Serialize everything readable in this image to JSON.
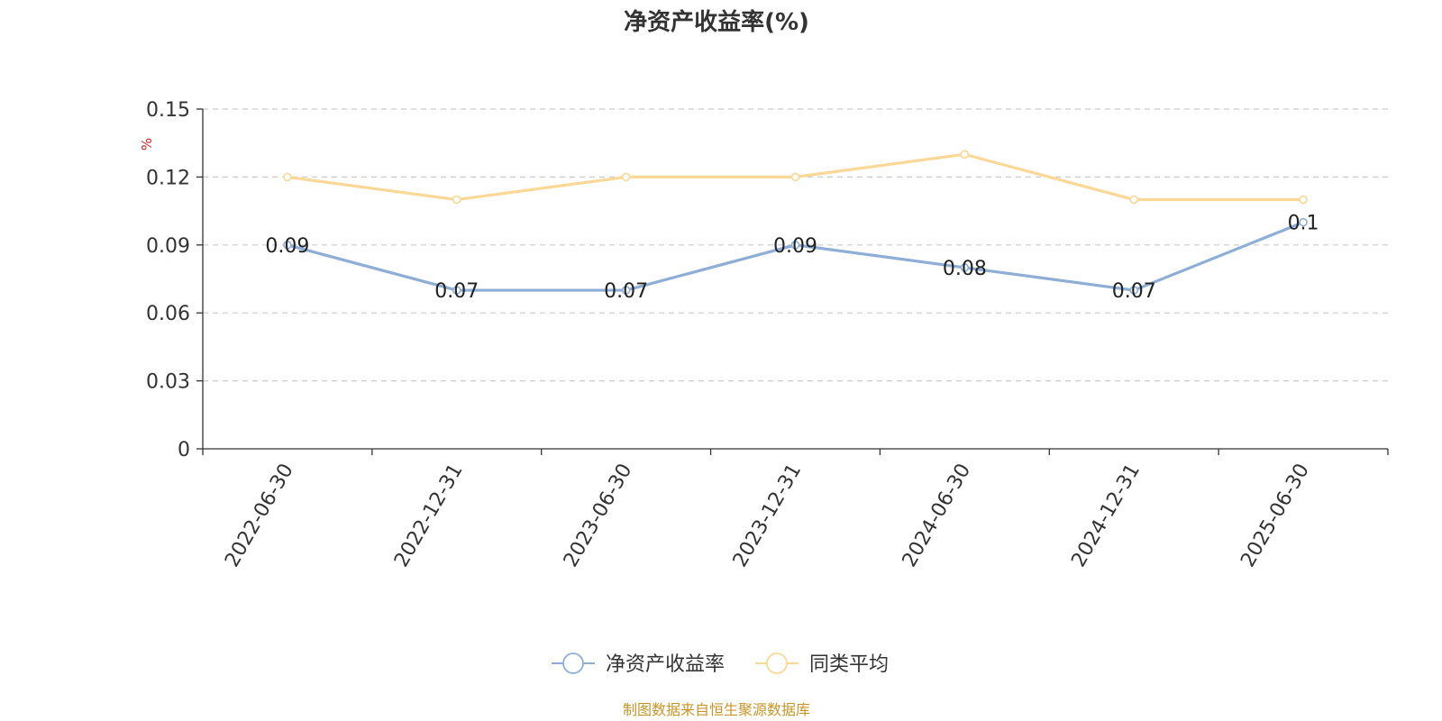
{
  "chart_data": {
    "type": "line",
    "title": "净资产收益率(%)",
    "ylabel": "%",
    "xlabel": "",
    "categories": [
      "2022-06-30",
      "2022-12-31",
      "2023-06-30",
      "2023-12-31",
      "2024-06-30",
      "2024-12-31",
      "2025-06-30"
    ],
    "ylim": [
      0,
      0.15
    ],
    "yticks": [
      "0",
      "0.03",
      "0.06",
      "0.09",
      "0.12",
      "0.15"
    ],
    "grid": true,
    "legend_position": "bottom",
    "series": [
      {
        "name": "净资产收益率",
        "values": [
          0.09,
          0.07,
          0.07,
          0.09,
          0.08,
          0.07,
          0.1
        ],
        "labels": [
          "0.09",
          "0.07",
          "0.07",
          "0.09",
          "0.08",
          "0.07",
          "0.1"
        ],
        "color": "#8eaed8"
      },
      {
        "name": "同类平均",
        "values": [
          0.12,
          0.11,
          0.12,
          0.12,
          0.13,
          0.11,
          0.11
        ],
        "color": "#fbd897"
      }
    ]
  },
  "source_text": "制图数据来自恒生聚源数据库",
  "colors": {
    "source": "#c8952a",
    "unit": "#e02020",
    "axis": "#333333",
    "grid": "#cccccc"
  }
}
